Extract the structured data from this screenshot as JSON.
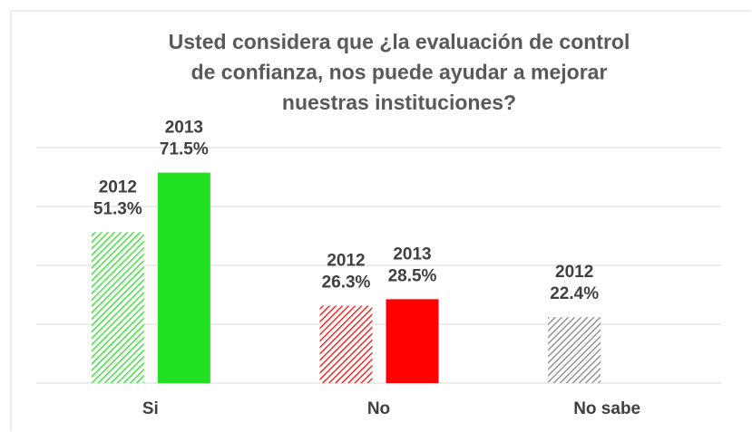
{
  "chart_data": {
    "type": "bar",
    "title": [
      "Usted considera que ¿la evaluación de control",
      "de confianza, nos puede ayudar a mejorar",
      "nuestras instituciones?"
    ],
    "categories": [
      "Si",
      "No",
      "No sabe"
    ],
    "colors": [
      "#22e022",
      "#ff0000",
      "#808080"
    ],
    "series": [
      {
        "name": "2012",
        "pattern": "hatch",
        "values": [
          51.3,
          26.3,
          22.4
        ],
        "value_labels": [
          "51.3%",
          "26.3%",
          "22.4%"
        ]
      },
      {
        "name": "2013",
        "pattern": "solid",
        "values": [
          71.5,
          28.5,
          null
        ],
        "value_labels": [
          "71.5%",
          "28.5%",
          null
        ]
      }
    ],
    "ylim": [
      0,
      80
    ],
    "yticks": [
      0,
      20,
      40,
      60,
      80
    ],
    "grid": true
  }
}
